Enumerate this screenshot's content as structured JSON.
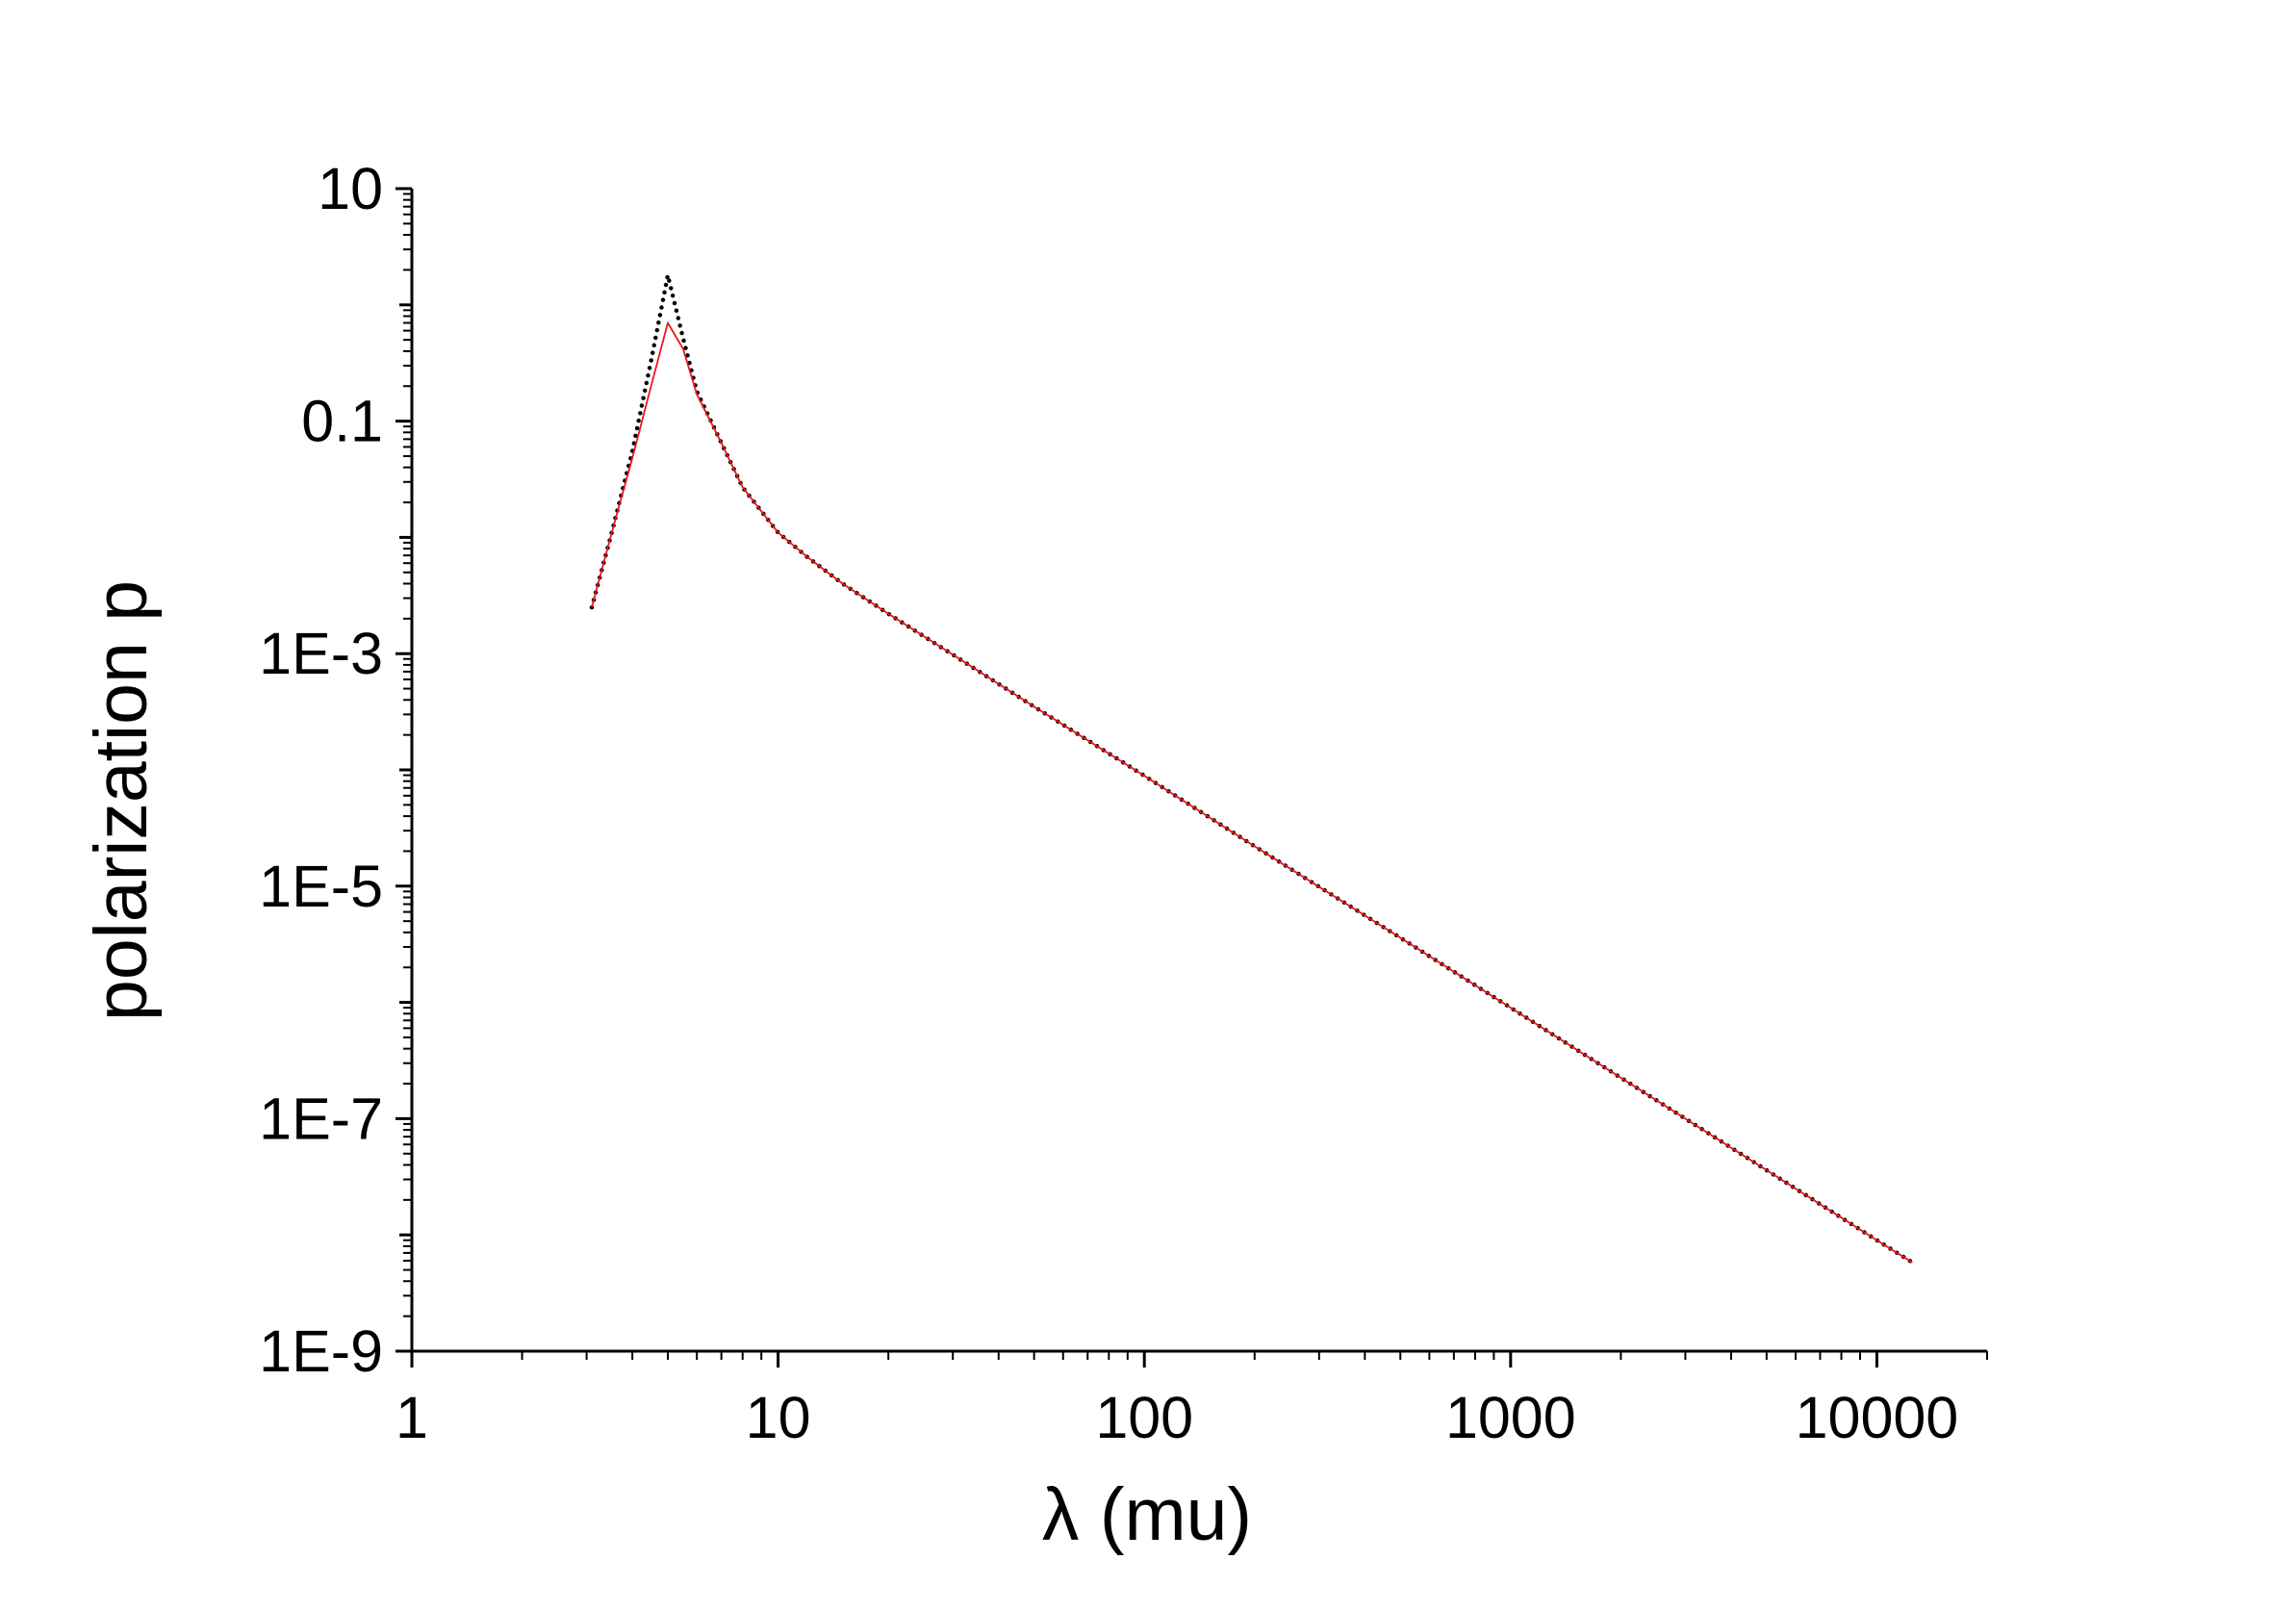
{
  "chart_data": {
    "type": "line",
    "title": "",
    "xlabel": "λ (mu)",
    "ylabel": "polarization p",
    "x_scale": "log",
    "y_scale": "log",
    "xlim": [
      1,
      20000
    ],
    "ylim": [
      1e-09,
      10
    ],
    "x_ticks": [
      {
        "value": 1,
        "label": "1"
      },
      {
        "value": 10,
        "label": "10"
      },
      {
        "value": 100,
        "label": "100"
      },
      {
        "value": 1000,
        "label": "1000"
      },
      {
        "value": 10000,
        "label": "10000"
      }
    ],
    "y_ticks": [
      {
        "value": 10,
        "label": "10"
      },
      {
        "value": 0.1,
        "label": "0.1"
      },
      {
        "value": 0.001,
        "label": "1E-3"
      },
      {
        "value": 1e-05,
        "label": "1E-5"
      },
      {
        "value": 1e-07,
        "label": "1E-7"
      },
      {
        "value": 1e-09,
        "label": "1E-9"
      }
    ],
    "grid": false,
    "legend": "none",
    "series": [
      {
        "style": "dotted",
        "color": "#000000",
        "x": [
          3.1,
          3.5,
          4.0,
          4.5,
          5.0,
          5.5,
          6.0,
          7.0,
          8.0,
          10,
          12,
          15,
          20,
          30,
          50,
          100,
          200,
          500,
          1000,
          2000,
          5000,
          10000,
          12500
        ],
        "y": [
          0.0025,
          0.0105,
          0.055,
          0.33,
          1.8,
          0.52,
          0.18,
          0.065,
          0.027,
          0.011,
          0.0068,
          0.004,
          0.0022,
          0.00098,
          0.00035,
          8.9e-05,
          2.2e-05,
          3.6e-06,
          9e-07,
          2.25e-07,
          3.6e-08,
          9e-09,
          5.8e-09
        ]
      },
      {
        "style": "solid",
        "color": "#e8181e",
        "x": [
          3.1,
          3.5,
          4.0,
          4.5,
          5.0,
          5.5,
          6.0,
          7.0,
          8.0,
          10,
          12,
          15,
          20,
          30,
          50,
          100,
          200,
          500,
          1000,
          2000,
          5000,
          10000,
          12500
        ],
        "y": [
          0.0025,
          0.0105,
          0.048,
          0.2,
          0.7,
          0.42,
          0.17,
          0.065,
          0.027,
          0.011,
          0.0068,
          0.004,
          0.0022,
          0.00098,
          0.00035,
          8.9e-05,
          2.2e-05,
          3.6e-06,
          9e-07,
          2.25e-07,
          3.6e-08,
          9e-09,
          5.8e-09
        ]
      }
    ]
  }
}
